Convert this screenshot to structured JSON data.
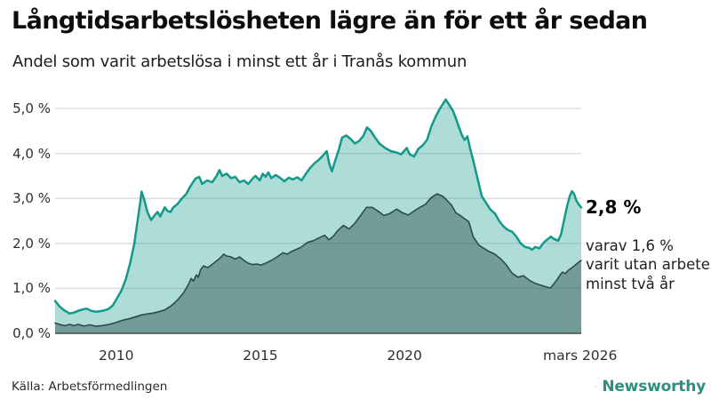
{
  "header": {
    "title": "Långtidsarbetslösheten lägre än för ett år sedan",
    "subtitle": "Andel som varit arbetslösa i minst ett år i Tranås kommun"
  },
  "footer": {
    "source": "Källa: Arbetsförmedlingen",
    "brand_name": "Newsworthy"
  },
  "colors": {
    "line_primary": "#13998a",
    "fill_primary": "rgba(22,154,139,0.35)",
    "line_secondary": "#2e4b46",
    "fill_secondary": "rgba(31,66,62,0.42)",
    "gridline": "#d9dadd",
    "axis_line": "#474747",
    "brand_teal": "#2f8d81"
  },
  "annotations": {
    "end_value_label": "2,8 %",
    "sub_label_lines": [
      "varav 1,6 %",
      "varit utan arbete",
      "minst två år"
    ]
  },
  "chart_data": {
    "type": "area",
    "title": "Långtidsarbetslösheten lägre än för ett år sedan",
    "subtitle": "Andel som varit arbetslösa i minst ett år i Tranås kommun",
    "grid": "horizontal",
    "legend_position": "none",
    "x_axis": {
      "range": [
        2008.0,
        2026.25
      ],
      "ticks": [
        {
          "label": "2010",
          "x": 2010.12
        },
        {
          "label": "2015",
          "x": 2015.12
        },
        {
          "label": "2020",
          "x": 2020.12
        },
        {
          "label": "mars 2026",
          "x": 2026.21
        }
      ]
    },
    "y_axis": {
      "range": [
        0,
        5
      ],
      "ticks": [
        {
          "label": "0,0 %",
          "value": 0
        },
        {
          "label": "1,0 %",
          "value": 1
        },
        {
          "label": "2,0 %",
          "value": 2
        },
        {
          "label": "3,0 %",
          "value": 3
        },
        {
          "label": "4,0 %",
          "value": 4
        },
        {
          "label": "5,0 %",
          "value": 5
        }
      ]
    },
    "series": [
      {
        "name": "Andel arbetslösa minst ett år",
        "end_label": "2,8 %",
        "end_value": 2.8,
        "points": [
          [
            2008.0,
            0.72
          ],
          [
            2008.15,
            0.6
          ],
          [
            2008.3,
            0.52
          ],
          [
            2008.5,
            0.44
          ],
          [
            2008.65,
            0.46
          ],
          [
            2008.8,
            0.5
          ],
          [
            2008.95,
            0.53
          ],
          [
            2009.1,
            0.55
          ],
          [
            2009.25,
            0.5
          ],
          [
            2009.4,
            0.48
          ],
          [
            2009.55,
            0.49
          ],
          [
            2009.7,
            0.51
          ],
          [
            2009.85,
            0.54
          ],
          [
            2010.0,
            0.62
          ],
          [
            2010.15,
            0.78
          ],
          [
            2010.3,
            0.95
          ],
          [
            2010.45,
            1.2
          ],
          [
            2010.6,
            1.55
          ],
          [
            2010.75,
            2.0
          ],
          [
            2010.85,
            2.45
          ],
          [
            2010.95,
            2.9
          ],
          [
            2011.0,
            3.15
          ],
          [
            2011.1,
            2.95
          ],
          [
            2011.2,
            2.7
          ],
          [
            2011.33,
            2.52
          ],
          [
            2011.45,
            2.62
          ],
          [
            2011.55,
            2.7
          ],
          [
            2011.65,
            2.6
          ],
          [
            2011.8,
            2.8
          ],
          [
            2011.9,
            2.72
          ],
          [
            2012.0,
            2.7
          ],
          [
            2012.1,
            2.8
          ],
          [
            2012.25,
            2.88
          ],
          [
            2012.4,
            3.0
          ],
          [
            2012.55,
            3.1
          ],
          [
            2012.7,
            3.28
          ],
          [
            2012.87,
            3.44
          ],
          [
            2013.0,
            3.48
          ],
          [
            2013.1,
            3.32
          ],
          [
            2013.27,
            3.4
          ],
          [
            2013.45,
            3.36
          ],
          [
            2013.6,
            3.5
          ],
          [
            2013.7,
            3.63
          ],
          [
            2013.8,
            3.5
          ],
          [
            2013.95,
            3.55
          ],
          [
            2014.1,
            3.45
          ],
          [
            2014.25,
            3.48
          ],
          [
            2014.4,
            3.36
          ],
          [
            2014.55,
            3.4
          ],
          [
            2014.7,
            3.32
          ],
          [
            2014.85,
            3.44
          ],
          [
            2014.95,
            3.5
          ],
          [
            2015.1,
            3.4
          ],
          [
            2015.2,
            3.55
          ],
          [
            2015.3,
            3.48
          ],
          [
            2015.4,
            3.58
          ],
          [
            2015.5,
            3.45
          ],
          [
            2015.65,
            3.52
          ],
          [
            2015.8,
            3.46
          ],
          [
            2015.95,
            3.38
          ],
          [
            2016.1,
            3.46
          ],
          [
            2016.25,
            3.42
          ],
          [
            2016.4,
            3.47
          ],
          [
            2016.55,
            3.4
          ],
          [
            2016.7,
            3.55
          ],
          [
            2016.85,
            3.68
          ],
          [
            2017.0,
            3.78
          ],
          [
            2017.15,
            3.86
          ],
          [
            2017.3,
            3.96
          ],
          [
            2017.42,
            4.05
          ],
          [
            2017.5,
            3.8
          ],
          [
            2017.6,
            3.6
          ],
          [
            2017.72,
            3.85
          ],
          [
            2017.85,
            4.1
          ],
          [
            2017.95,
            4.35
          ],
          [
            2018.1,
            4.4
          ],
          [
            2018.25,
            4.32
          ],
          [
            2018.4,
            4.22
          ],
          [
            2018.55,
            4.28
          ],
          [
            2018.7,
            4.4
          ],
          [
            2018.82,
            4.58
          ],
          [
            2018.95,
            4.5
          ],
          [
            2019.1,
            4.35
          ],
          [
            2019.25,
            4.22
          ],
          [
            2019.45,
            4.12
          ],
          [
            2019.65,
            4.05
          ],
          [
            2019.85,
            4.02
          ],
          [
            2020.0,
            3.98
          ],
          [
            2020.1,
            4.05
          ],
          [
            2020.2,
            4.12
          ],
          [
            2020.3,
            3.98
          ],
          [
            2020.45,
            3.93
          ],
          [
            2020.6,
            4.1
          ],
          [
            2020.75,
            4.18
          ],
          [
            2020.9,
            4.3
          ],
          [
            2021.05,
            4.6
          ],
          [
            2021.2,
            4.82
          ],
          [
            2021.35,
            5.0
          ],
          [
            2021.5,
            5.15
          ],
          [
            2021.55,
            5.2
          ],
          [
            2021.65,
            5.1
          ],
          [
            2021.8,
            4.95
          ],
          [
            2021.9,
            4.78
          ],
          [
            2022.0,
            4.6
          ],
          [
            2022.1,
            4.42
          ],
          [
            2022.2,
            4.3
          ],
          [
            2022.3,
            4.38
          ],
          [
            2022.4,
            4.1
          ],
          [
            2022.5,
            3.85
          ],
          [
            2022.65,
            3.45
          ],
          [
            2022.8,
            3.05
          ],
          [
            2022.95,
            2.9
          ],
          [
            2023.1,
            2.75
          ],
          [
            2023.25,
            2.67
          ],
          [
            2023.4,
            2.5
          ],
          [
            2023.55,
            2.38
          ],
          [
            2023.7,
            2.3
          ],
          [
            2023.85,
            2.26
          ],
          [
            2024.0,
            2.15
          ],
          [
            2024.15,
            2.0
          ],
          [
            2024.3,
            1.92
          ],
          [
            2024.45,
            1.9
          ],
          [
            2024.55,
            1.86
          ],
          [
            2024.65,
            1.92
          ],
          [
            2024.8,
            1.89
          ],
          [
            2024.95,
            2.02
          ],
          [
            2025.1,
            2.1
          ],
          [
            2025.2,
            2.15
          ],
          [
            2025.3,
            2.1
          ],
          [
            2025.45,
            2.06
          ],
          [
            2025.55,
            2.2
          ],
          [
            2025.65,
            2.5
          ],
          [
            2025.75,
            2.8
          ],
          [
            2025.85,
            3.05
          ],
          [
            2025.93,
            3.16
          ],
          [
            2026.0,
            3.1
          ],
          [
            2026.08,
            2.95
          ],
          [
            2026.15,
            2.88
          ],
          [
            2026.25,
            2.8
          ]
        ]
      },
      {
        "name": "varav utan arbete minst två år",
        "end_label": "varav 1,6 % varit utan arbete minst två år",
        "end_value": 1.6,
        "points": [
          [
            2008.0,
            0.23
          ],
          [
            2008.2,
            0.19
          ],
          [
            2008.35,
            0.17
          ],
          [
            2008.5,
            0.2
          ],
          [
            2008.65,
            0.17
          ],
          [
            2008.8,
            0.2
          ],
          [
            2009.0,
            0.16
          ],
          [
            2009.2,
            0.19
          ],
          [
            2009.4,
            0.16
          ],
          [
            2009.6,
            0.17
          ],
          [
            2009.8,
            0.19
          ],
          [
            2010.0,
            0.22
          ],
          [
            2010.2,
            0.26
          ],
          [
            2010.4,
            0.3
          ],
          [
            2010.6,
            0.33
          ],
          [
            2010.8,
            0.37
          ],
          [
            2011.0,
            0.41
          ],
          [
            2011.2,
            0.43
          ],
          [
            2011.4,
            0.45
          ],
          [
            2011.6,
            0.48
          ],
          [
            2011.8,
            0.52
          ],
          [
            2012.0,
            0.6
          ],
          [
            2012.15,
            0.68
          ],
          [
            2012.3,
            0.78
          ],
          [
            2012.45,
            0.9
          ],
          [
            2012.55,
            1.0
          ],
          [
            2012.65,
            1.12
          ],
          [
            2012.72,
            1.22
          ],
          [
            2012.8,
            1.16
          ],
          [
            2012.9,
            1.3
          ],
          [
            2012.97,
            1.25
          ],
          [
            2013.05,
            1.42
          ],
          [
            2013.15,
            1.5
          ],
          [
            2013.3,
            1.46
          ],
          [
            2013.5,
            1.56
          ],
          [
            2013.7,
            1.66
          ],
          [
            2013.85,
            1.76
          ],
          [
            2013.95,
            1.72
          ],
          [
            2014.1,
            1.7
          ],
          [
            2014.25,
            1.65
          ],
          [
            2014.4,
            1.7
          ],
          [
            2014.55,
            1.62
          ],
          [
            2014.7,
            1.56
          ],
          [
            2014.85,
            1.53
          ],
          [
            2015.0,
            1.54
          ],
          [
            2015.15,
            1.52
          ],
          [
            2015.3,
            1.56
          ],
          [
            2015.5,
            1.62
          ],
          [
            2015.7,
            1.7
          ],
          [
            2015.9,
            1.79
          ],
          [
            2016.05,
            1.76
          ],
          [
            2016.2,
            1.82
          ],
          [
            2016.35,
            1.86
          ],
          [
            2016.55,
            1.92
          ],
          [
            2016.75,
            2.02
          ],
          [
            2016.95,
            2.06
          ],
          [
            2017.15,
            2.12
          ],
          [
            2017.35,
            2.18
          ],
          [
            2017.5,
            2.08
          ],
          [
            2017.65,
            2.16
          ],
          [
            2017.8,
            2.28
          ],
          [
            2018.0,
            2.4
          ],
          [
            2018.2,
            2.32
          ],
          [
            2018.4,
            2.45
          ],
          [
            2018.6,
            2.62
          ],
          [
            2018.8,
            2.8
          ],
          [
            2019.0,
            2.8
          ],
          [
            2019.2,
            2.72
          ],
          [
            2019.4,
            2.62
          ],
          [
            2019.6,
            2.66
          ],
          [
            2019.85,
            2.76
          ],
          [
            2020.05,
            2.68
          ],
          [
            2020.25,
            2.63
          ],
          [
            2020.45,
            2.72
          ],
          [
            2020.65,
            2.8
          ],
          [
            2020.85,
            2.87
          ],
          [
            2021.05,
            3.02
          ],
          [
            2021.25,
            3.1
          ],
          [
            2021.45,
            3.05
          ],
          [
            2021.6,
            2.95
          ],
          [
            2021.75,
            2.85
          ],
          [
            2021.9,
            2.68
          ],
          [
            2022.05,
            2.62
          ],
          [
            2022.2,
            2.55
          ],
          [
            2022.35,
            2.48
          ],
          [
            2022.5,
            2.15
          ],
          [
            2022.7,
            1.96
          ],
          [
            2022.85,
            1.9
          ],
          [
            2023.05,
            1.82
          ],
          [
            2023.25,
            1.76
          ],
          [
            2023.45,
            1.66
          ],
          [
            2023.65,
            1.52
          ],
          [
            2023.85,
            1.34
          ],
          [
            2024.05,
            1.25
          ],
          [
            2024.25,
            1.28
          ],
          [
            2024.45,
            1.18
          ],
          [
            2024.65,
            1.11
          ],
          [
            2024.85,
            1.07
          ],
          [
            2025.05,
            1.03
          ],
          [
            2025.18,
            1.01
          ],
          [
            2025.3,
            1.1
          ],
          [
            2025.42,
            1.2
          ],
          [
            2025.52,
            1.3
          ],
          [
            2025.6,
            1.36
          ],
          [
            2025.7,
            1.33
          ],
          [
            2025.8,
            1.4
          ],
          [
            2025.95,
            1.47
          ],
          [
            2026.08,
            1.54
          ],
          [
            2026.18,
            1.59
          ],
          [
            2026.25,
            1.62
          ]
        ]
      }
    ]
  }
}
